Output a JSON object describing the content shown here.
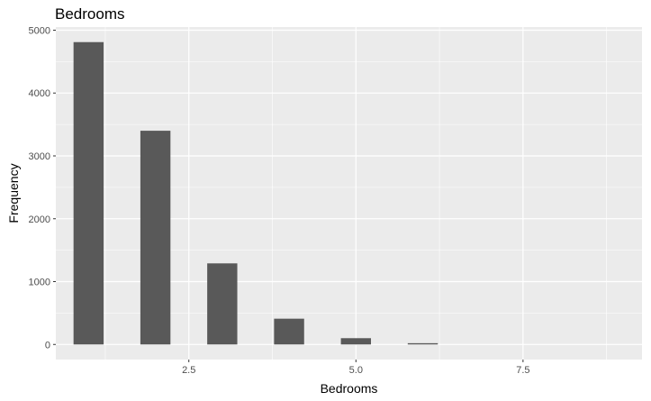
{
  "chart_data": {
    "type": "bar",
    "title": "Bedrooms",
    "xlabel": "Bedrooms",
    "ylabel": "Frequency",
    "x": [
      1,
      2,
      3,
      4,
      5,
      6,
      7,
      8,
      9
    ],
    "values": [
      4810,
      3400,
      1290,
      410,
      100,
      20,
      0,
      0,
      0
    ],
    "bar_width": 0.45,
    "xlim": [
      0.51,
      9.28
    ],
    "ylim": [
      -240,
      5050
    ],
    "x_ticks": [
      2.5,
      5.0,
      7.5
    ],
    "x_tick_labels": [
      "2.5",
      "5.0",
      "7.5"
    ],
    "y_ticks": [
      0,
      1000,
      2000,
      3000,
      4000,
      5000
    ],
    "y_tick_labels": [
      "0",
      "1000",
      "2000",
      "3000",
      "4000",
      "5000"
    ],
    "grid": true,
    "colors": {
      "panel": "#ebebeb",
      "grid": "#ffffff",
      "bar": "#595959",
      "tick": "#333333"
    }
  }
}
